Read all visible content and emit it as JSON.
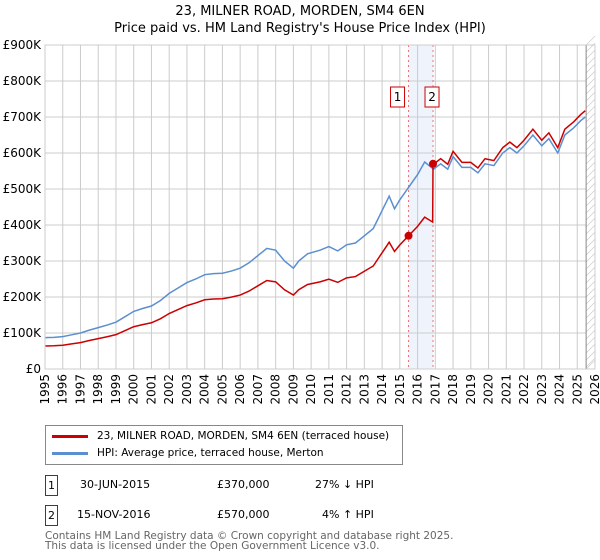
{
  "chart_data": {
    "type": "line",
    "title": "23, MILNER ROAD, MORDEN, SM4 6EN",
    "subtitle": "Price paid vs. HM Land Registry's House Price Index (HPI)",
    "xlim": [
      1995,
      2026
    ],
    "ylim": [
      0,
      900000
    ],
    "x_ticks": [
      "1995",
      "1996",
      "1997",
      "1998",
      "1999",
      "2000",
      "2001",
      "2002",
      "2003",
      "2004",
      "2005",
      "2006",
      "2007",
      "2008",
      "2009",
      "2010",
      "2011",
      "2012",
      "2013",
      "2014",
      "2015",
      "2016",
      "2017",
      "2018",
      "2019",
      "2020",
      "2021",
      "2022",
      "2023",
      "2024",
      "2025",
      "2026"
    ],
    "y_ticks": [
      {
        "v": 0,
        "label": "£0"
      },
      {
        "v": 100000,
        "label": "£100K"
      },
      {
        "v": 200000,
        "label": "£200K"
      },
      {
        "v": 300000,
        "label": "£300K"
      },
      {
        "v": 400000,
        "label": "£400K"
      },
      {
        "v": 500000,
        "label": "£500K"
      },
      {
        "v": 600000,
        "label": "£600K"
      },
      {
        "v": 700000,
        "label": "£700K"
      },
      {
        "v": 800000,
        "label": "£800K"
      },
      {
        "v": 900000,
        "label": "£900K"
      }
    ],
    "grid": true,
    "forecast_hatch_from": 2025.5,
    "series": [
      {
        "name": "HPI: Average price, terraced house, Merton",
        "color": "#5b8fd0",
        "x": [
          1995,
          1995.5,
          1996,
          1996.5,
          1997,
          1997.5,
          1998,
          1998.5,
          1999,
          1999.5,
          2000,
          2000.5,
          2001,
          2001.5,
          2002,
          2002.5,
          2003,
          2003.5,
          2004,
          2004.5,
          2005,
          2005.5,
          2006,
          2006.5,
          2007,
          2007.5,
          2008,
          2008.5,
          2009,
          2009.3,
          2009.8,
          2010.5,
          2011,
          2011.5,
          2012,
          2012.5,
          2013,
          2013.5,
          2014,
          2014.4,
          2014.7,
          2015,
          2015.5,
          2016,
          2016.4,
          2016.9,
          2017.3,
          2017.7,
          2018,
          2018.5,
          2019,
          2019.4,
          2019.8,
          2020.3,
          2020.8,
          2021.2,
          2021.6,
          2022,
          2022.5,
          2023,
          2023.4,
          2023.9,
          2024.3,
          2024.8,
          2025.2,
          2025.45
        ],
        "y": [
          87000,
          88000,
          90000,
          95000,
          100000,
          108000,
          115000,
          122000,
          130000,
          145000,
          160000,
          168000,
          175000,
          190000,
          210000,
          225000,
          240000,
          250000,
          262000,
          265000,
          266000,
          272000,
          280000,
          295000,
          315000,
          335000,
          330000,
          300000,
          280000,
          300000,
          320000,
          330000,
          340000,
          328000,
          345000,
          350000,
          370000,
          390000,
          440000,
          480000,
          445000,
          470000,
          505000,
          540000,
          575000,
          555000,
          570000,
          555000,
          590000,
          560000,
          560000,
          545000,
          570000,
          565000,
          600000,
          615000,
          600000,
          620000,
          650000,
          620000,
          640000,
          600000,
          650000,
          670000,
          690000,
          700000
        ]
      },
      {
        "name": "23, MILNER ROAD, MORDEN, SM4 6EN (terraced house)",
        "color": "#cc0000"
      }
    ],
    "sales": [
      {
        "id": "1",
        "x": 2015.49,
        "date": "30-JUN-2015",
        "price": 370000,
        "price_label": "£370,000",
        "hpi": "27% ↓ HPI"
      },
      {
        "id": "2",
        "x": 2016.87,
        "date": "15-NOV-2016",
        "price": 570000,
        "price_label": "£570,000",
        "hpi": "4% ↑ HPI"
      }
    ]
  },
  "legend": {
    "property": "23, MILNER ROAD, MORDEN, SM4 6EN (terraced house)",
    "hpi": "HPI: Average price, terraced house, Merton"
  },
  "footer": {
    "line1": "Contains HM Land Registry data © Crown copyright and database right 2025.",
    "line2": "This data is licensed under the Open Government Licence v3.0."
  },
  "colors": {
    "red": "#cc0000",
    "blue": "#5b8fd0",
    "shade": "#eef3fc"
  }
}
